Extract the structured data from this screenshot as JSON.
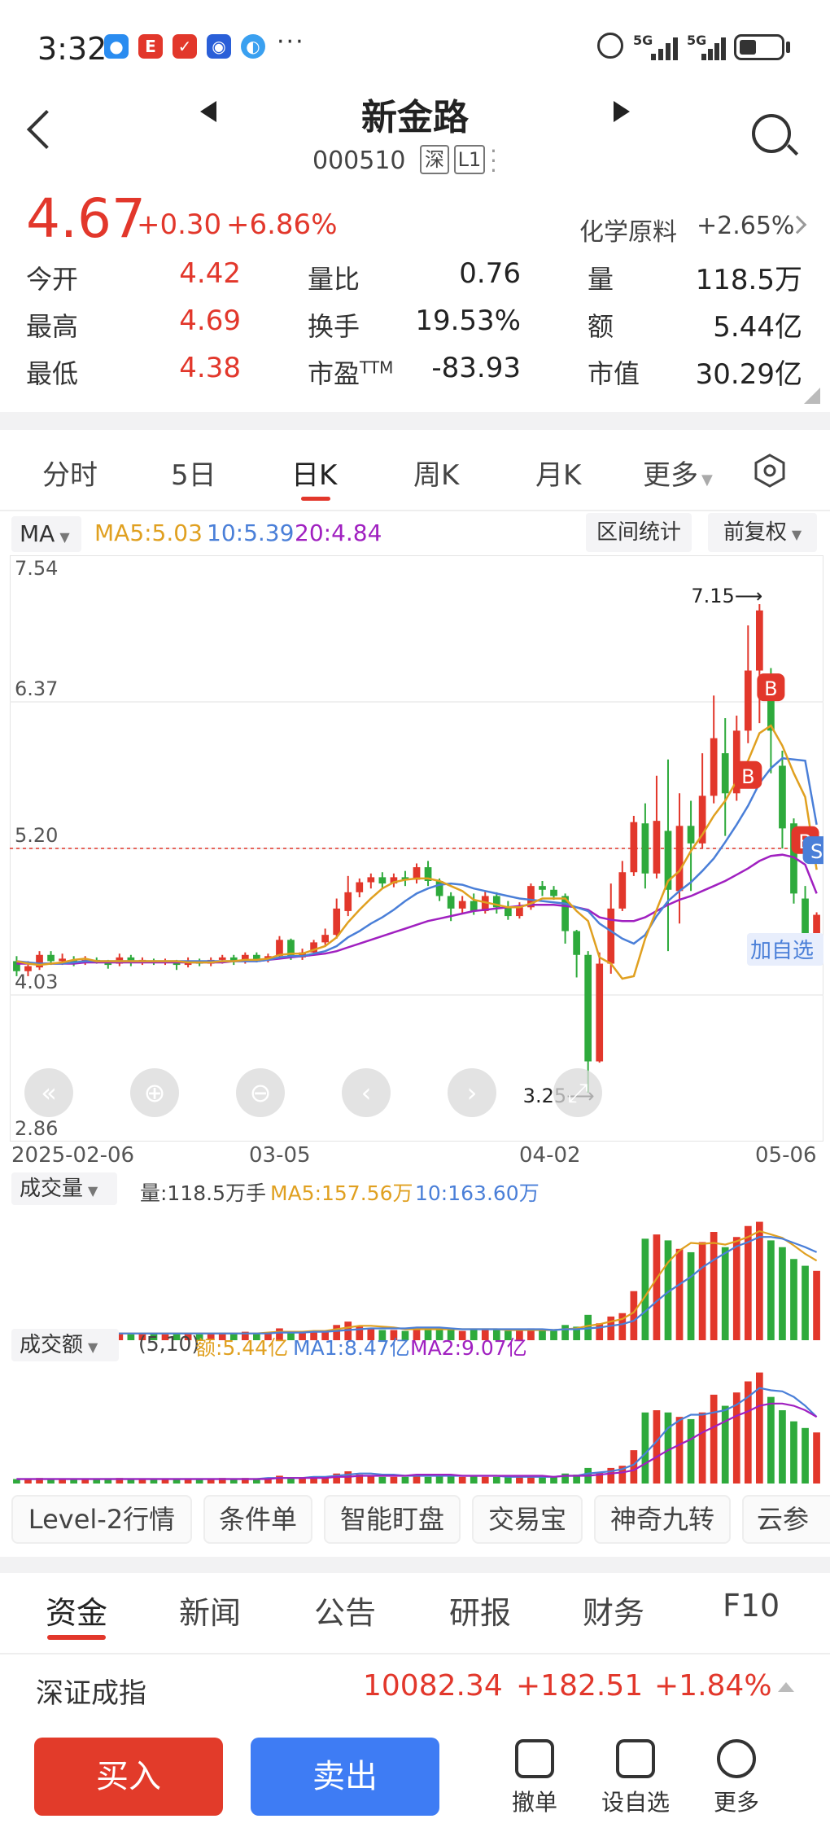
{
  "status_bar": {
    "time": "3:32",
    "more": "···",
    "signal1": "5G",
    "signal2": "5G"
  },
  "header": {
    "stock_name": "新金路",
    "stock_code": "000510",
    "market_tag": "深",
    "level_tag": "L1"
  },
  "quote": {
    "price": "4.67",
    "change": "+0.30",
    "change_pct": "+6.86%",
    "sector_name": "化学原料",
    "sector_pct": "+2.65%",
    "rows": [
      [
        {
          "label": "今开",
          "value": "4.42",
          "color": "red"
        },
        {
          "label": "量比",
          "value": "0.76",
          "color": "dark"
        },
        {
          "label": "量",
          "value": "118.5万",
          "color": "dark"
        }
      ],
      [
        {
          "label": "最高",
          "value": "4.69",
          "color": "red"
        },
        {
          "label": "换手",
          "value": "19.53%",
          "color": "dark"
        },
        {
          "label": "额",
          "value": "5.44亿",
          "color": "dark"
        }
      ],
      [
        {
          "label": "最低",
          "value": "4.38",
          "color": "red"
        },
        {
          "label": "市盈",
          "value": "-83.93",
          "color": "dark",
          "sup": "TTM"
        },
        {
          "label": "市值",
          "value": "30.29亿",
          "color": "dark"
        }
      ]
    ]
  },
  "kline_tabs": [
    "分时",
    "5日",
    "日K",
    "周K",
    "月K",
    "更多"
  ],
  "chart_header": {
    "ma_label": "MA",
    "ma5": "MA5:5.03",
    "ma10": "10:5.39",
    "ma20": "20:4.84",
    "interval_stats": "区间统计",
    "adjust": "前复权"
  },
  "chart_data": {
    "type": "candlestick",
    "y_ticks": [
      "7.54",
      "6.37",
      "5.20",
      "4.03",
      "2.86"
    ],
    "ylim": [
      2.86,
      7.54
    ],
    "reference_line": 5.2,
    "x_labels": [
      "2025-02-06",
      "03-05",
      "04-02",
      "05-06"
    ],
    "high_marker": "7.15",
    "low_marker": "3.25",
    "add_watchlist": "加自选",
    "candles": [
      [
        4.3,
        4.22,
        4.34,
        4.18
      ],
      [
        4.22,
        4.26,
        4.3,
        4.18
      ],
      [
        4.25,
        4.35,
        4.38,
        4.23
      ],
      [
        4.35,
        4.3,
        4.38,
        4.27
      ],
      [
        4.3,
        4.32,
        4.36,
        4.27
      ],
      [
        4.31,
        4.29,
        4.34,
        4.26
      ],
      [
        4.29,
        4.31,
        4.34,
        4.27
      ],
      [
        4.31,
        4.3,
        4.33,
        4.28
      ],
      [
        4.29,
        4.27,
        4.31,
        4.24
      ],
      [
        4.28,
        4.33,
        4.36,
        4.26
      ],
      [
        4.33,
        4.29,
        4.35,
        4.26
      ],
      [
        4.29,
        4.31,
        4.33,
        4.27
      ],
      [
        4.3,
        4.29,
        4.32,
        4.27
      ],
      [
        4.29,
        4.3,
        4.32,
        4.27
      ],
      [
        4.3,
        4.27,
        4.31,
        4.23
      ],
      [
        4.27,
        4.3,
        4.33,
        4.25
      ],
      [
        4.3,
        4.28,
        4.32,
        4.26
      ],
      [
        4.28,
        4.31,
        4.33,
        4.26
      ],
      [
        4.31,
        4.33,
        4.35,
        4.28
      ],
      [
        4.33,
        4.3,
        4.35,
        4.27
      ],
      [
        4.3,
        4.35,
        4.37,
        4.28
      ],
      [
        4.35,
        4.31,
        4.37,
        4.29
      ],
      [
        4.31,
        4.34,
        4.36,
        4.29
      ],
      [
        4.34,
        4.47,
        4.5,
        4.32
      ],
      [
        4.47,
        4.33,
        4.48,
        4.31
      ],
      [
        4.33,
        4.37,
        4.4,
        4.31
      ],
      [
        4.37,
        4.45,
        4.47,
        4.35
      ],
      [
        4.45,
        4.51,
        4.56,
        4.43
      ],
      [
        4.51,
        4.72,
        4.8,
        4.48
      ],
      [
        4.7,
        4.85,
        4.98,
        4.66
      ],
      [
        4.85,
        4.93,
        4.96,
        4.81
      ],
      [
        4.93,
        4.97,
        5.0,
        4.88
      ],
      [
        4.97,
        4.92,
        5.01,
        4.88
      ],
      [
        4.92,
        4.97,
        5.0,
        4.89
      ],
      [
        4.97,
        4.95,
        5.02,
        4.9
      ],
      [
        4.95,
        5.05,
        5.08,
        4.92
      ],
      [
        5.05,
        4.94,
        5.1,
        4.9
      ],
      [
        4.94,
        4.82,
        4.96,
        4.78
      ],
      [
        4.82,
        4.72,
        4.85,
        4.62
      ],
      [
        4.72,
        4.78,
        4.82,
        4.68
      ],
      [
        4.78,
        4.7,
        4.84,
        4.67
      ],
      [
        4.7,
        4.82,
        4.86,
        4.68
      ],
      [
        4.82,
        4.73,
        4.85,
        4.68
      ],
      [
        4.73,
        4.66,
        4.78,
        4.63
      ],
      [
        4.66,
        4.73,
        4.77,
        4.64
      ],
      [
        4.73,
        4.9,
        4.92,
        4.71
      ],
      [
        4.9,
        4.87,
        4.94,
        4.82
      ],
      [
        4.87,
        4.82,
        4.9,
        4.79
      ],
      [
        4.82,
        4.54,
        4.84,
        4.44
      ],
      [
        4.54,
        4.35,
        4.55,
        4.17
      ],
      [
        4.35,
        3.5,
        4.38,
        3.25
      ],
      [
        3.5,
        4.28,
        4.37,
        3.49
      ],
      [
        4.28,
        4.72,
        4.92,
        4.2
      ],
      [
        4.72,
        5.01,
        5.1,
        4.7
      ],
      [
        5.01,
        5.41,
        5.46,
        4.98
      ],
      [
        5.4,
        5.0,
        5.56,
        4.88
      ],
      [
        5.0,
        5.42,
        5.78,
        4.96
      ],
      [
        5.34,
        4.87,
        5.91,
        4.38
      ],
      [
        4.86,
        5.38,
        5.64,
        4.6
      ],
      [
        5.38,
        5.24,
        5.58,
        4.86
      ],
      [
        5.24,
        5.62,
        5.96,
        5.2
      ],
      [
        5.62,
        6.08,
        6.42,
        5.56
      ],
      [
        5.96,
        5.64,
        6.24,
        5.3
      ],
      [
        5.64,
        6.14,
        6.26,
        5.58
      ],
      [
        6.14,
        6.62,
        6.98,
        6.04
      ],
      [
        6.62,
        7.1,
        7.15,
        6.2
      ],
      [
        6.5,
        6.14,
        6.64,
        5.8
      ],
      [
        5.86,
        5.36,
        5.98,
        5.2
      ],
      [
        5.4,
        4.84,
        5.44,
        4.76
      ],
      [
        4.8,
        4.47,
        4.9,
        4.42
      ],
      [
        4.42,
        4.67,
        4.69,
        4.38
      ]
    ],
    "ma5_series": [
      4.3,
      4.28,
      4.27,
      4.28,
      4.29,
      4.31,
      4.32,
      4.3,
      4.3,
      4.3,
      4.3,
      4.3,
      4.3,
      4.3,
      4.3,
      4.29,
      4.29,
      4.29,
      4.3,
      4.3,
      4.31,
      4.31,
      4.32,
      4.35,
      4.36,
      4.36,
      4.39,
      4.42,
      4.49,
      4.61,
      4.71,
      4.8,
      4.88,
      4.93,
      4.95,
      4.96,
      4.96,
      4.94,
      4.9,
      4.86,
      4.79,
      4.77,
      4.75,
      4.73,
      4.73,
      4.76,
      4.8,
      4.8,
      4.8,
      4.7,
      4.62,
      4.33,
      4.28,
      4.16,
      4.18,
      4.48,
      4.71,
      4.94,
      5.02,
      5.18,
      5.31,
      5.46,
      5.58,
      5.74,
      5.9,
      6.12,
      6.18,
      6.02,
      5.8,
      5.61,
      5.03
    ],
    "ma10_series": [
      4.3,
      4.29,
      4.28,
      4.28,
      4.28,
      4.29,
      4.3,
      4.3,
      4.3,
      4.3,
      4.3,
      4.3,
      4.3,
      4.3,
      4.3,
      4.3,
      4.3,
      4.3,
      4.3,
      4.3,
      4.3,
      4.3,
      4.31,
      4.33,
      4.34,
      4.34,
      4.36,
      4.38,
      4.42,
      4.49,
      4.54,
      4.6,
      4.65,
      4.71,
      4.78,
      4.84,
      4.88,
      4.91,
      4.92,
      4.91,
      4.88,
      4.86,
      4.84,
      4.82,
      4.8,
      4.79,
      4.78,
      4.77,
      4.76,
      4.73,
      4.7,
      4.6,
      4.54,
      4.48,
      4.44,
      4.51,
      4.66,
      4.78,
      4.86,
      4.93,
      5.02,
      5.12,
      5.25,
      5.39,
      5.54,
      5.72,
      5.84,
      5.92,
      5.91,
      5.9,
      5.39
    ],
    "ma20_series": [
      4.28,
      4.28,
      4.28,
      4.28,
      4.28,
      4.28,
      4.29,
      4.29,
      4.29,
      4.29,
      4.29,
      4.29,
      4.29,
      4.29,
      4.29,
      4.29,
      4.29,
      4.29,
      4.29,
      4.3,
      4.3,
      4.3,
      4.31,
      4.32,
      4.33,
      4.34,
      4.35,
      4.36,
      4.38,
      4.41,
      4.44,
      4.47,
      4.5,
      4.53,
      4.56,
      4.59,
      4.62,
      4.64,
      4.66,
      4.68,
      4.7,
      4.71,
      4.72,
      4.73,
      4.74,
      4.75,
      4.75,
      4.75,
      4.74,
      4.73,
      4.71,
      4.65,
      4.63,
      4.62,
      4.62,
      4.65,
      4.7,
      4.75,
      4.79,
      4.82,
      4.86,
      4.9,
      4.94,
      4.99,
      5.04,
      5.1,
      5.14,
      5.15,
      5.13,
      5.07,
      4.84
    ]
  },
  "volume": {
    "label": "成交量",
    "value": "量:118.5万手",
    "ma5": "MA5:157.56万",
    "ma10": "10:163.60万",
    "bars": [
      8,
      7,
      9,
      8,
      8,
      7,
      8,
      7,
      8,
      9,
      7,
      8,
      8,
      7,
      8,
      8,
      7,
      8,
      9,
      8,
      10,
      8,
      9,
      14,
      10,
      9,
      11,
      12,
      18,
      22,
      16,
      14,
      12,
      12,
      11,
      14,
      12,
      13,
      14,
      11,
      13,
      12,
      12,
      11,
      12,
      14,
      12,
      11,
      18,
      16,
      30,
      20,
      28,
      32,
      58,
      120,
      125,
      118,
      108,
      104,
      116,
      128,
      110,
      122,
      135,
      140,
      118,
      110,
      96,
      88,
      82
    ],
    "ma5_series": [
      8,
      8,
      8,
      8,
      8,
      8,
      8,
      8,
      8,
      8,
      8,
      8,
      8,
      8,
      8,
      8,
      8,
      8,
      8,
      8,
      8,
      8,
      9,
      10,
      10,
      10,
      11,
      11,
      13,
      15,
      17,
      17,
      16,
      15,
      13,
      13,
      13,
      13,
      13,
      13,
      13,
      13,
      13,
      12,
      12,
      12,
      12,
      12,
      13,
      14,
      17,
      19,
      22,
      25,
      33,
      52,
      73,
      92,
      106,
      115,
      114,
      115,
      113,
      117,
      122,
      129,
      125,
      121,
      112,
      102,
      94
    ],
    "ma10_series": [
      8,
      8,
      8,
      8,
      8,
      8,
      8,
      8,
      8,
      8,
      8,
      8,
      8,
      8,
      8,
      8,
      8,
      8,
      8,
      8,
      8,
      8,
      8,
      9,
      9,
      9,
      10,
      10,
      11,
      12,
      13,
      14,
      14,
      14,
      14,
      15,
      15,
      15,
      14,
      13,
      13,
      13,
      13,
      13,
      13,
      13,
      13,
      12,
      13,
      13,
      14,
      15,
      17,
      19,
      23,
      34,
      46,
      57,
      66,
      75,
      86,
      95,
      103,
      111,
      116,
      122,
      122,
      120,
      115,
      110,
      104
    ]
  },
  "amount": {
    "label": "成交额",
    "params": "(5,10)",
    "value": "额:5.44亿",
    "ma1": "MA1:8.47亿",
    "ma2": "MA2:9.07亿",
    "bars": [
      4,
      4,
      5,
      4,
      4,
      4,
      4,
      4,
      4,
      5,
      4,
      4,
      4,
      4,
      4,
      4,
      4,
      4,
      5,
      4,
      5,
      4,
      5,
      7,
      5,
      5,
      6,
      6,
      9,
      11,
      8,
      7,
      6,
      6,
      6,
      7,
      6,
      7,
      7,
      6,
      7,
      6,
      6,
      6,
      6,
      7,
      6,
      6,
      9,
      8,
      14,
      10,
      14,
      16,
      30,
      64,
      66,
      64,
      60,
      58,
      64,
      80,
      70,
      82,
      92,
      100,
      78,
      66,
      56,
      50,
      46
    ],
    "ma1_series": [
      4,
      4,
      4,
      4,
      4,
      4,
      4,
      4,
      4,
      4,
      4,
      4,
      4,
      4,
      4,
      4,
      4,
      4,
      4,
      4,
      4,
      4,
      5,
      5,
      5,
      5,
      6,
      6,
      7,
      8,
      9,
      9,
      8,
      8,
      7,
      7,
      7,
      7,
      7,
      7,
      7,
      7,
      7,
      6,
      6,
      6,
      6,
      6,
      7,
      7,
      9,
      10,
      11,
      13,
      17,
      27,
      38,
      50,
      57,
      62,
      62,
      64,
      66,
      71,
      78,
      86,
      84,
      83,
      78,
      70,
      60
    ],
    "ma2_series": [
      4,
      4,
      4,
      4,
      4,
      4,
      4,
      4,
      4,
      4,
      4,
      4,
      4,
      4,
      4,
      4,
      4,
      4,
      4,
      4,
      4,
      4,
      4,
      5,
      5,
      5,
      5,
      5,
      6,
      6,
      7,
      7,
      7,
      7,
      7,
      8,
      8,
      8,
      8,
      7,
      7,
      7,
      7,
      7,
      7,
      7,
      7,
      6,
      7,
      7,
      7,
      8,
      9,
      10,
      12,
      18,
      24,
      30,
      35,
      40,
      46,
      51,
      56,
      61,
      65,
      70,
      72,
      72,
      70,
      66,
      60
    ]
  },
  "function_buttons": [
    "Level-2行情",
    "条件单",
    "智能盯盘",
    "交易宝",
    "神奇九转",
    "云参"
  ],
  "bottom_tabs": [
    "资金",
    "新闻",
    "公告",
    "研报",
    "财务",
    "F10"
  ],
  "index": {
    "name": "深证成指",
    "value": "10082.34",
    "change": "+182.51",
    "pct": "+1.84%"
  },
  "actions": {
    "buy": "买入",
    "sell": "卖出",
    "cancel": "撤单",
    "set_watch": "设自选",
    "more": "更多"
  },
  "colors": {
    "up": "#e2372b",
    "down": "#2eaa3c",
    "ma5": "#e0a020",
    "ma10": "#4a7fd8",
    "ma20": "#a020c0",
    "buy": "#e23b2a",
    "sell": "#3e7cf4"
  }
}
